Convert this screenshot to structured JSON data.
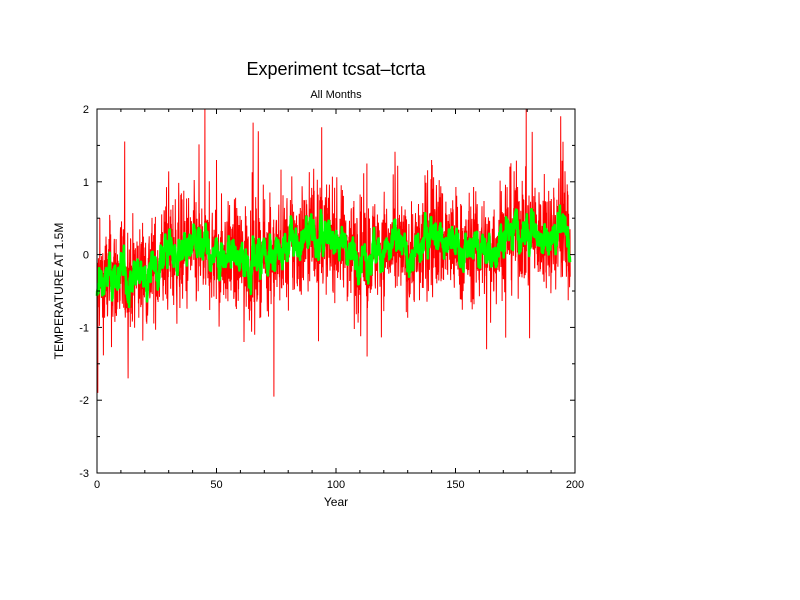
{
  "chart_data": {
    "type": "line",
    "title": "Experiment tcsat–tcrta",
    "subtitle": "All Months",
    "xlabel": "Year",
    "ylabel": "TEMPERATURE AT 1.5M",
    "xlim": [
      0,
      200
    ],
    "ylim": [
      -3,
      2
    ],
    "xticks": [
      0,
      50,
      100,
      150,
      200
    ],
    "yticks": [
      -3,
      -2,
      -1,
      0,
      1,
      2
    ],
    "grid": false,
    "colors": {
      "monthly": "#ff0000",
      "smoothed": "#00ff00"
    },
    "anchor_x": [
      0,
      5,
      10,
      15,
      20,
      25,
      30,
      35,
      40,
      45,
      50,
      55,
      60,
      65,
      70,
      75,
      80,
      85,
      90,
      95,
      100,
      105,
      110,
      115,
      120,
      125,
      130,
      135,
      140,
      145,
      150,
      155,
      160,
      165,
      170,
      175,
      180,
      185,
      190,
      195,
      198
    ],
    "smoothed_y": [
      -0.45,
      -0.35,
      -0.3,
      -0.3,
      -0.25,
      -0.2,
      0.05,
      0.0,
      0.05,
      0.0,
      -0.05,
      0.0,
      -0.1,
      -0.05,
      0.0,
      0.0,
      0.1,
      0.2,
      0.3,
      0.25,
      0.2,
      0.1,
      0.0,
      0.05,
      0.1,
      0.05,
      0.0,
      0.05,
      0.35,
      0.2,
      0.1,
      0.05,
      0.1,
      0.05,
      0.3,
      0.35,
      0.3,
      0.25,
      0.3,
      0.35,
      0.1
    ],
    "spread": [
      0.35,
      0.4,
      0.4,
      0.35,
      0.35,
      0.35,
      0.4,
      0.4,
      0.4,
      0.35,
      0.35,
      0.35,
      0.4,
      0.4,
      0.35,
      0.35,
      0.35,
      0.4,
      0.4,
      0.35,
      0.35,
      0.35,
      0.4,
      0.35,
      0.35,
      0.35,
      0.35,
      0.35,
      0.45,
      0.4,
      0.35,
      0.35,
      0.35,
      0.35,
      0.4,
      0.4,
      0.35,
      0.35,
      0.35,
      0.45,
      0.35
    ],
    "extremes": [
      {
        "x": 0.3,
        "y": -1.9
      },
      {
        "x": 13,
        "y": -1.7
      },
      {
        "x": 74,
        "y": -1.95
      },
      {
        "x": 94,
        "y": 1.75
      },
      {
        "x": 113,
        "y": -1.4
      },
      {
        "x": 140,
        "y": 1.3
      },
      {
        "x": 163,
        "y": -1.3
      },
      {
        "x": 181,
        "y": -1.15
      },
      {
        "x": 194,
        "y": 1.9
      },
      {
        "x": 195,
        "y": 1.55
      },
      {
        "x": 66,
        "y": -1.1
      },
      {
        "x": 50,
        "y": 1.3
      }
    ]
  }
}
